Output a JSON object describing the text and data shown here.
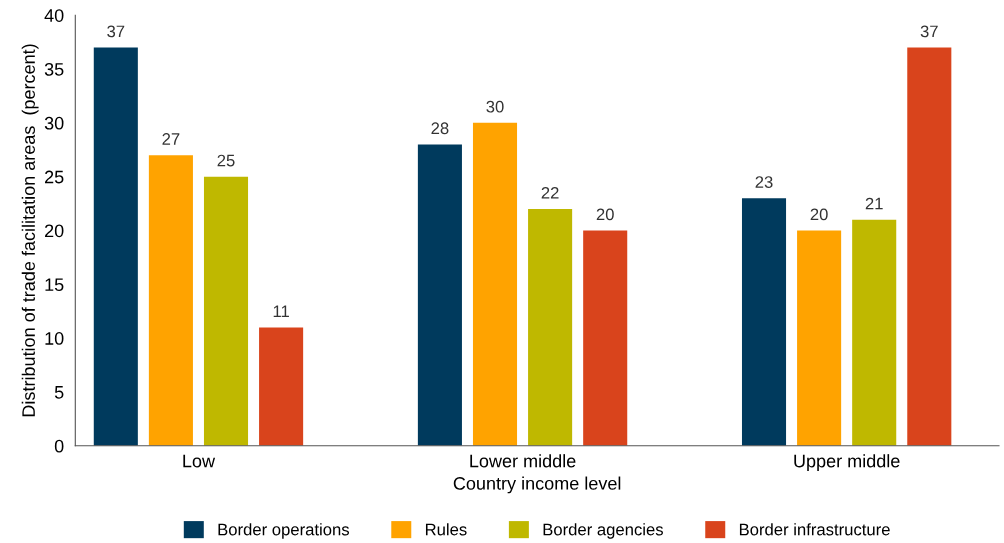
{
  "chart_data": {
    "type": "bar",
    "xlabel": "Country income level",
    "ylabel": "Distribution of trade facilitation areas  (percent)",
    "categories": [
      "Low",
      "Lower middle",
      "Upper middle"
    ],
    "series": [
      {
        "name": "Border operations",
        "color": "#003a5d",
        "values": [
          37,
          28,
          23
        ]
      },
      {
        "name": "Rules",
        "color": "#ffa300",
        "values": [
          27,
          30,
          20
        ]
      },
      {
        "name": "Border agencies",
        "color": "#bfb800",
        "values": [
          25,
          22,
          21
        ]
      },
      {
        "name": "Border infrastructure",
        "color": "#d9441c",
        "values": [
          11,
          20,
          37
        ]
      }
    ],
    "ylim": [
      0,
      40
    ],
    "yticks": [
      0,
      5,
      10,
      15,
      20,
      25,
      30,
      35,
      40
    ],
    "grid": false,
    "legend": "bottom",
    "data_labels": true
  }
}
